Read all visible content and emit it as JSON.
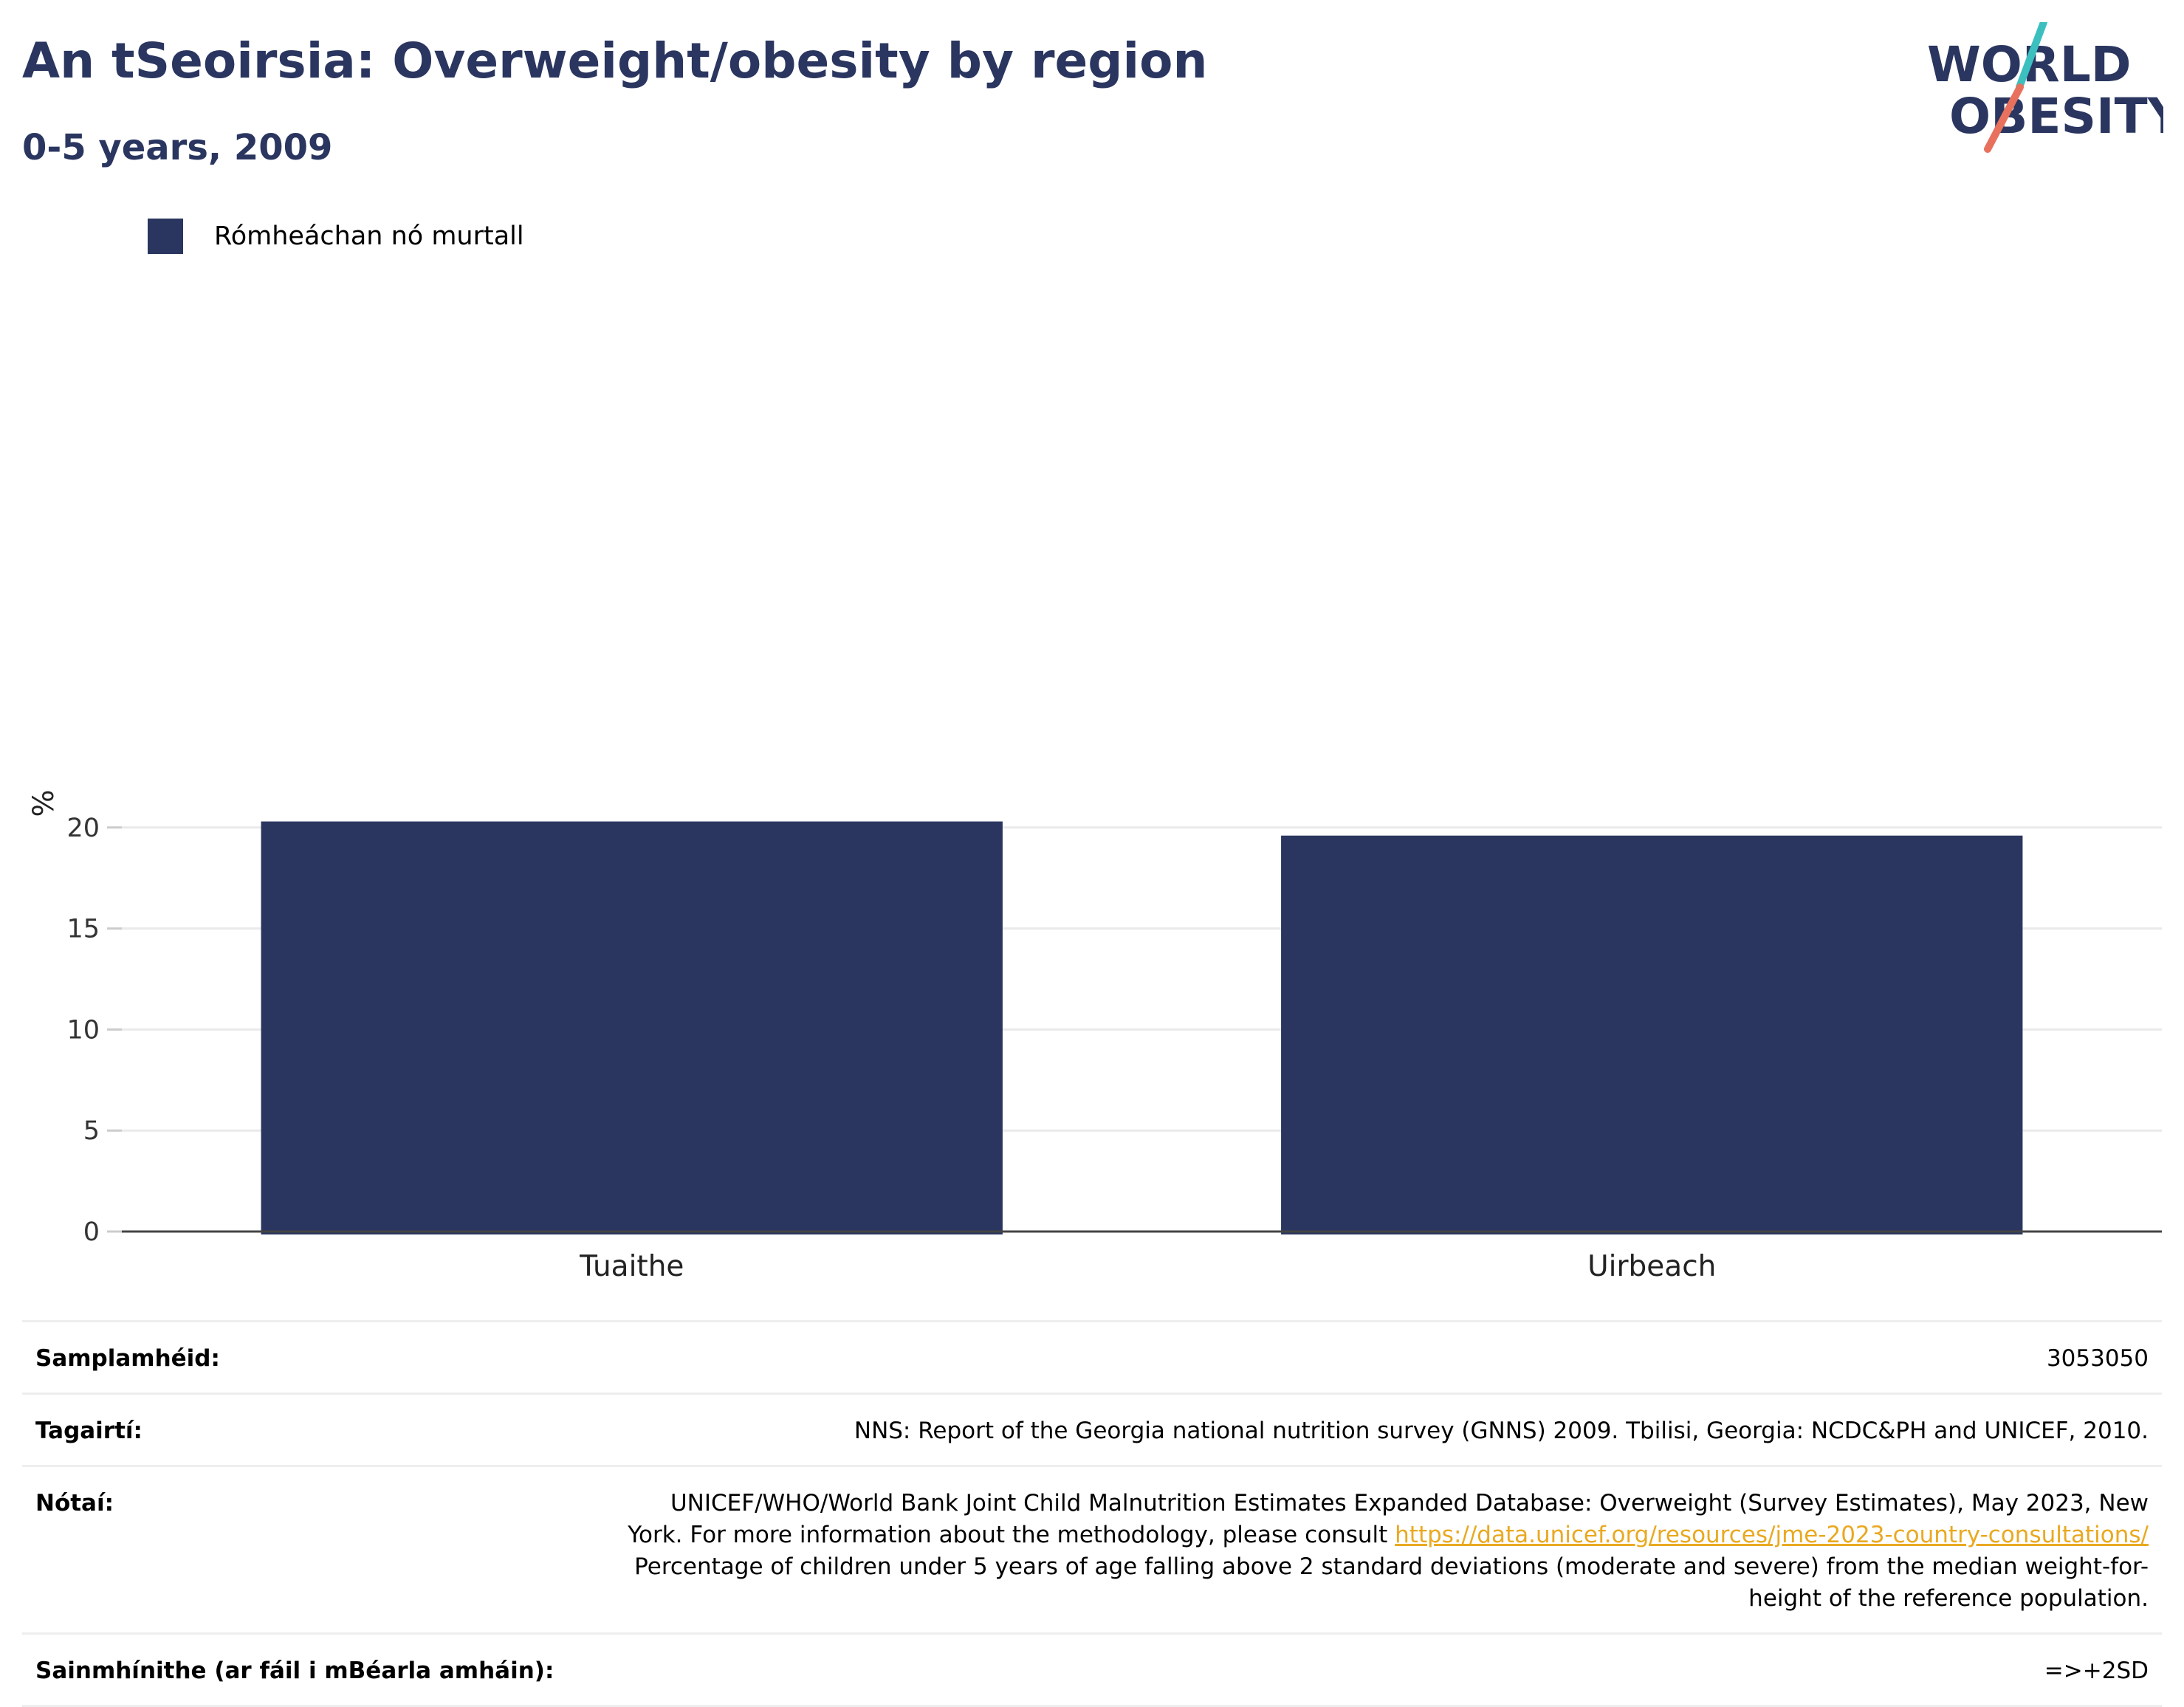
{
  "header": {
    "title": "An tSeoirsia: Overweight/obesity by region",
    "subtitle": "0-5 years, 2009"
  },
  "logo": {
    "line1": "WORLD",
    "line2": "OBESITY",
    "colors": {
      "text": "#2a3660",
      "teal": "#3cbfbf",
      "coral": "#e8715e"
    }
  },
  "legend": {
    "items": [
      {
        "label": "Rómheáchan nó murtall",
        "color": "#2a3660"
      }
    ]
  },
  "chart_data": {
    "type": "bar",
    "categories": [
      "Tuaithe",
      "Uirbeach"
    ],
    "series": [
      {
        "name": "Rómheáchan nó murtall",
        "values": [
          20.3,
          19.6
        ],
        "color": "#2a3660"
      }
    ],
    "xlabel": "",
    "ylabel": "%",
    "ylim": [
      0,
      21
    ],
    "yticks": [
      0,
      5,
      10,
      15,
      20
    ],
    "grid": true,
    "legend_position": "top-left"
  },
  "info_table": {
    "sample_size": {
      "label": "Samplamhéid:",
      "value": "3053050"
    },
    "references": {
      "label": "Tagairtí:",
      "value": "NNS: Report of the Georgia national nutrition survey (GNNS) 2009. Tbilisi, Georgia: NCDC&PH and UNICEF, 2010."
    },
    "notes": {
      "label": "Nótaí:",
      "line1": "UNICEF/WHO/World Bank Joint Child Malnutrition Estimates Expanded Database: Overweight (Survey Estimates), May 2023, New",
      "line2_prefix": "York. For more information about the methodology, please consult",
      "link": "https://data.unicef.org/resources/jme-2023-country-consultations/",
      "line3": "Percentage of children under 5 years of age falling above 2 standard deviations (moderate and severe) from the median weight-for-",
      "line4": "height of the reference population."
    },
    "definitions": {
      "label": "Sainmhínithe (ar fáil i mBéarla amháin):",
      "value": "=>+2SD"
    }
  }
}
